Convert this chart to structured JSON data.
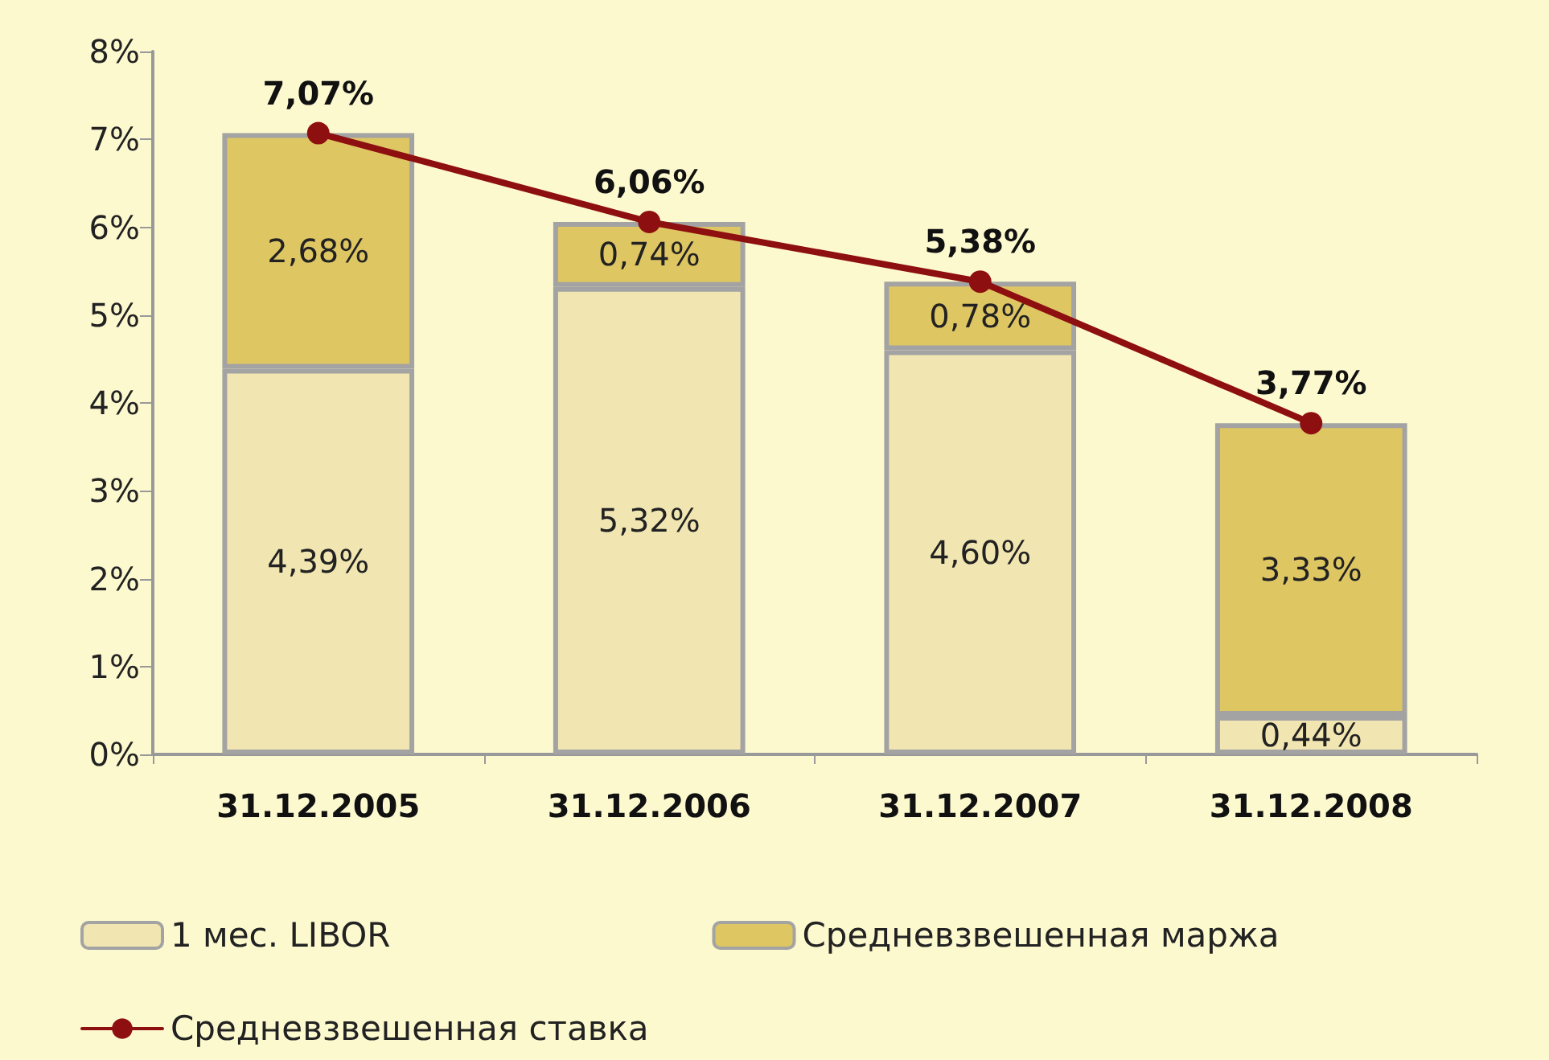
{
  "chart_data": {
    "type": "bar",
    "stacked": true,
    "categories": [
      "31.12.2005",
      "31.12.2006",
      "31.12.2007",
      "31.12.2008"
    ],
    "series": [
      {
        "name": "1 мес. LIBOR",
        "color": "#f1e6b2",
        "values": [
          4.39,
          5.32,
          4.6,
          0.44
        ],
        "value_labels": [
          "4,39%",
          "5,32%",
          "4,60%",
          "0,44%"
        ]
      },
      {
        "name": "Средневзвешенная маржа",
        "color": "#dec663",
        "values": [
          2.68,
          0.74,
          0.78,
          3.33
        ],
        "value_labels": [
          "2,68%",
          "0,74%",
          "0,78%",
          "3,33%"
        ]
      },
      {
        "name": "Средневзвешенная ставка",
        "type": "line",
        "color": "#8e0f0f",
        "marker": "circle",
        "line_style": "solid",
        "values": [
          7.07,
          6.06,
          5.38,
          3.77
        ],
        "value_labels": [
          "7,07%",
          "6,06%",
          "5,38%",
          "3,77%"
        ]
      }
    ],
    "ylim": [
      0,
      8
    ],
    "yticks": [
      {
        "value": 0,
        "label": "0%"
      },
      {
        "value": 1,
        "label": "1%"
      },
      {
        "value": 2,
        "label": "2%"
      },
      {
        "value": 3,
        "label": "3%"
      },
      {
        "value": 4,
        "label": "4%"
      },
      {
        "value": 5,
        "label": "5%"
      },
      {
        "value": 6,
        "label": "6%"
      },
      {
        "value": 7,
        "label": "7%"
      },
      {
        "value": 8,
        "label": "8%"
      }
    ],
    "grid": false,
    "legend": "bottom"
  }
}
